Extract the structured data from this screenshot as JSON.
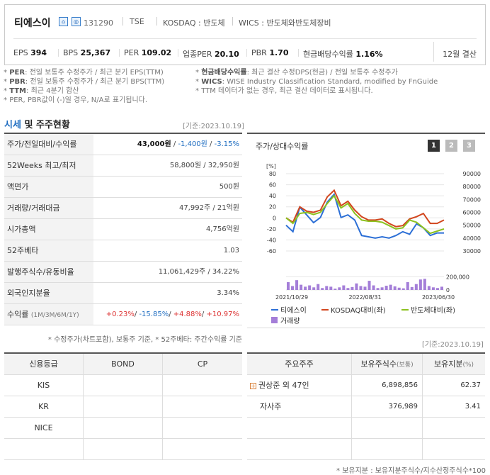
{
  "header": {
    "company_name": "티에스이",
    "code": "131290",
    "market": "TSE",
    "kosdaq": "KOSDAQ : 반도체",
    "wics": "WICS : 반도체와반도체장비",
    "stats": {
      "eps_label": "EPS",
      "eps": "394",
      "bps_label": "BPS",
      "bps": "25,367",
      "per_label": "PER",
      "per": "109.02",
      "ind_per_label": "업종PER",
      "ind_per": "20.10",
      "pbr_label": "PBR",
      "pbr": "1.70",
      "div_label": "현금배당수익률",
      "div": "1.16%"
    },
    "fiscal": "12월 결산"
  },
  "notes": {
    "left": [
      {
        "key": "PER",
        "text": ": 전일 보통주 수정주가 / 최근 분기 EPS(TTM)"
      },
      {
        "key": "PBR",
        "text": ": 전일 보통주 수정주가 / 최근 분기 BPS(TTM)"
      },
      {
        "key": "TTM",
        "text": ": 최근 4분기 합산"
      },
      {
        "key": "",
        "text": "PER, PBR값이 (-)일 경우, N/A로 표기됩니다."
      }
    ],
    "right": [
      {
        "key": "현금배당수익률",
        "text": ": 최근 결산 수정DPS(현금) / 전일 보통주 수정주가"
      },
      {
        "key": "WICS",
        "text": ": WISE Industry Classification Standard, modified by FnGuide"
      },
      {
        "key": "",
        "text": "TTM 데이터가 없는 경우, 최근 결산 데이터로 표시됩니다."
      }
    ]
  },
  "market_section": {
    "title_a": "시세",
    "title_b": " 및 주주현황",
    "basis": "[기준:2023.10.19]",
    "rows": [
      {
        "label": "주가/전일대비/수익률",
        "v1": "43,000원",
        "sep1": " / ",
        "v2": "-1,400원",
        "sep2": " / ",
        "v3": "-3.15%"
      },
      {
        "label": "52Weeks 최고/최저",
        "value": "58,800원 / 32,950원"
      },
      {
        "label": "액면가",
        "value": "500원"
      },
      {
        "label": "거래량/거래대금",
        "value": "47,992주 / 21억원"
      },
      {
        "label": "시가총액",
        "value": "4,756억원"
      },
      {
        "label": "52주베타",
        "value": "1.03"
      },
      {
        "label": "발행주식수/유동비율",
        "value": "11,061,429주 / 34.22%"
      },
      {
        "label": "외국인지분율",
        "value": "3.34%"
      },
      {
        "label": "수익률",
        "label_sub": "(1M/3M/6M/1Y)",
        "r1": "+0.23%",
        "r2": "-15.85%",
        "r3": "+4.88%",
        "r4": "+10.97%",
        "slash": "/ "
      }
    ],
    "footnote": "* 수정주가(차트포함), 보통주 기준, * 52주베타: 주간수익률 기준"
  },
  "chart_panel": {
    "title": "주가/상대수익률",
    "pages": [
      "1",
      "2",
      "3"
    ],
    "legend": [
      {
        "name": "티에스이",
        "color": "#2c6fd6"
      },
      {
        "name": "KOSDAQ대비(좌)",
        "color": "#d2461e"
      },
      {
        "name": "반도체대비(좌)",
        "color": "#8cc11f"
      },
      {
        "name": "거래량",
        "color": "#a47ed8"
      }
    ]
  },
  "chart_data": {
    "type": "line",
    "x_tick_labels": [
      "2021/10/29",
      "2022/08/31",
      "2023/06/30"
    ],
    "left_axis": {
      "unit": "[%]",
      "ticks": [
        80,
        60,
        40,
        20,
        0,
        -20,
        -40,
        -60
      ],
      "ylim": [
        -60,
        80
      ]
    },
    "right_axis": {
      "ticks": [
        90000,
        80000,
        70000,
        60000,
        50000,
        40000,
        30000
      ],
      "ylim": [
        30000,
        90000
      ]
    },
    "volume_axis": {
      "ticks": [
        200000,
        0
      ],
      "ylim": [
        0,
        260000
      ]
    },
    "series": [
      {
        "name": "티에스이",
        "axis": "right",
        "values": [
          50000,
          45000,
          64000,
          58000,
          52000,
          56000,
          68000,
          74000,
          56000,
          58000,
          54000,
          42000,
          41000,
          40000,
          41000,
          40000,
          42000,
          45000,
          43000,
          51000,
          48000,
          42000,
          44000,
          44000
        ]
      },
      {
        "name": "KOSDAQ대비(좌)",
        "axis": "left",
        "values": [
          0,
          -8,
          20,
          12,
          10,
          14,
          38,
          50,
          22,
          30,
          14,
          2,
          -4,
          -4,
          -2,
          -10,
          -16,
          -14,
          -2,
          2,
          8,
          -10,
          -10,
          -4
        ]
      },
      {
        "name": "반도체대비(좌)",
        "axis": "left",
        "values": [
          0,
          -10,
          8,
          10,
          6,
          10,
          26,
          40,
          18,
          26,
          8,
          -4,
          -6,
          -6,
          -8,
          -14,
          -20,
          -18,
          -4,
          -8,
          -18,
          -28,
          -24,
          -20
        ]
      },
      {
        "name": "거래량",
        "axis": "volume",
        "type": "bar",
        "values": [
          120000,
          60000,
          150000,
          80000,
          50000,
          70000,
          40000,
          90000,
          30000,
          60000,
          50000,
          20000,
          40000,
          70000,
          30000,
          45000,
          100000,
          60000,
          50000,
          140000,
          70000,
          30000,
          40000,
          65000,
          80000,
          55000,
          35000,
          25000,
          120000,
          45000,
          90000,
          160000,
          170000,
          60000,
          40000,
          30000,
          50000
        ]
      }
    ]
  },
  "credit": {
    "headers": [
      "신용등급",
      "BOND",
      "CP"
    ],
    "rows": [
      [
        "KIS",
        "",
        ""
      ],
      [
        "KR",
        "",
        ""
      ],
      [
        "NICE",
        "",
        ""
      ],
      [
        "",
        "",
        ""
      ]
    ]
  },
  "holders": {
    "basis": "[기준:2023.10.19]",
    "headers": [
      "주요주주",
      "보유주식수",
      "(보통)",
      "보유지분",
      "(%)"
    ],
    "rows": [
      {
        "name": "권상준 외 47인",
        "shares": "6,898,856",
        "pct": "62.37",
        "expand": "+"
      },
      {
        "name": "자사주",
        "shares": "376,989",
        "pct": "3.41"
      },
      {
        "name": "",
        "shares": "",
        "pct": ""
      },
      {
        "name": "",
        "shares": "",
        "pct": ""
      }
    ],
    "footnote": "* 보유지분 : 보유지분주식수/지수산정주식수*100"
  }
}
